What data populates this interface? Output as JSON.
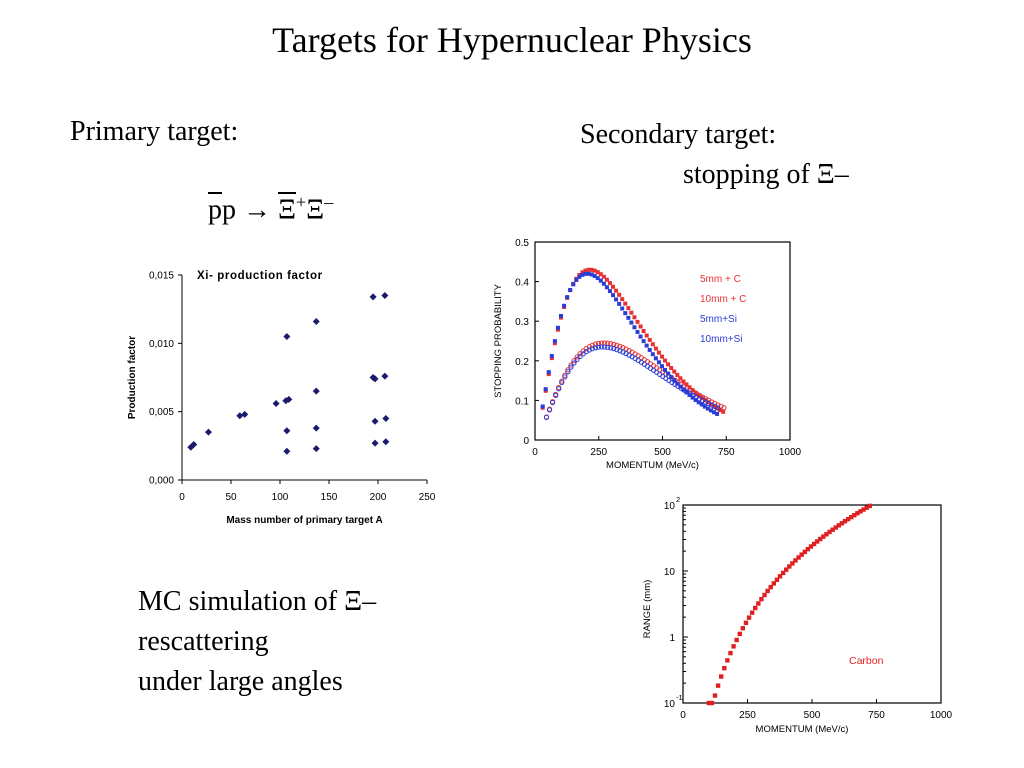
{
  "slide": {
    "title": "Targets for Hypernuclear Physics",
    "primary_label": "Primary target:",
    "reaction": {
      "p1": "p",
      "p2": "p",
      "arrow": "→",
      "xi1": "Ξ",
      "plus": "+",
      "xi2": "Ξ",
      "minus": "–"
    },
    "secondary_label": "Secondary target:",
    "secondary_sub": "stopping of Ξ–",
    "mc_lines": [
      "MC simulation of Ξ–",
      "rescattering",
      "under large angles"
    ]
  },
  "chart_data": [
    {
      "type": "scatter",
      "title": "Xi- production factor",
      "xlabel": "Mass number of primary target A",
      "ylabel": "Production factor",
      "xlim": [
        0,
        250
      ],
      "ylim": [
        0,
        0.015
      ],
      "x_ticks": [
        "0",
        "50",
        "100",
        "150",
        "200",
        "250"
      ],
      "y_ticks": [
        "0,000",
        "0,005",
        "0,010",
        "0,015"
      ],
      "color": "#1a1a6e",
      "points": [
        [
          9,
          0.0024
        ],
        [
          12,
          0.0026
        ],
        [
          27,
          0.0035
        ],
        [
          59,
          0.0047
        ],
        [
          64,
          0.0048
        ],
        [
          96,
          0.0056
        ],
        [
          106,
          0.0058
        ],
        [
          109,
          0.0059
        ],
        [
          107,
          0.0105
        ],
        [
          107,
          0.0036
        ],
        [
          107,
          0.0021
        ],
        [
          137,
          0.0116
        ],
        [
          137,
          0.0065
        ],
        [
          137,
          0.0038
        ],
        [
          137,
          0.0023
        ],
        [
          195,
          0.0134
        ],
        [
          207,
          0.0135
        ],
        [
          195,
          0.0075
        ],
        [
          197,
          0.0074
        ],
        [
          207,
          0.0076
        ],
        [
          197,
          0.0043
        ],
        [
          208,
          0.0045
        ],
        [
          197,
          0.0027
        ],
        [
          208,
          0.0028
        ]
      ]
    },
    {
      "type": "scatter",
      "xlabel": "MOMENTUM (MeV/c)",
      "ylabel": "STOPPING PROBABILITY",
      "xlim": [
        0,
        1000
      ],
      "ylim": [
        0,
        0.5
      ],
      "x_ticks": [
        "0",
        "250",
        "500",
        "750",
        "1000"
      ],
      "y_ticks": [
        "0",
        "0.1",
        "0.2",
        "0.3",
        "0.4",
        "0.5"
      ],
      "legend_position": "right",
      "series": [
        {
          "name": "5mm + C",
          "color": "#e83030",
          "marker": "square",
          "peak_x": 215,
          "peak_y": 0.43,
          "x_start": 30,
          "x_end": 740,
          "step": 12
        },
        {
          "name": "10mm + C",
          "color": "#e83030",
          "marker": "circle",
          "peak_x": 270,
          "peak_y": 0.245,
          "x_start": 45,
          "x_end": 745,
          "step": 12
        },
        {
          "name": "5mm+Si",
          "color": "#2a3dd8",
          "marker": "square",
          "peak_x": 205,
          "peak_y": 0.42,
          "x_start": 30,
          "x_end": 720,
          "step": 12
        },
        {
          "name": "10mm+Si",
          "color": "#2a3dd8",
          "marker": "circle",
          "peak_x": 265,
          "peak_y": 0.235,
          "x_start": 45,
          "x_end": 725,
          "step": 12
        }
      ]
    },
    {
      "type": "scatter",
      "xlabel": "MOMENTUM (MeV/c)",
      "ylabel": "RANGE (mm)",
      "xlim": [
        0,
        1000
      ],
      "ylim": [
        0.1,
        100
      ],
      "y_scale": "log",
      "x_ticks": [
        "0",
        "250",
        "500",
        "750",
        "1000"
      ],
      "y_ticks": [
        {
          "base": "10",
          "exp": "2"
        },
        {
          "base": "10",
          "exp": ""
        },
        {
          "base": "1",
          "exp": ""
        },
        {
          "base": "10",
          "exp": "-1"
        }
      ],
      "annotation": "Carbon",
      "series": [
        {
          "name": "Carbon",
          "color": "#e02020",
          "marker": "square",
          "x_start": 100,
          "x_end": 730,
          "step": 12,
          "y_at_start": 0.1,
          "y_at_end": 100,
          "power": 3.75
        }
      ]
    }
  ]
}
